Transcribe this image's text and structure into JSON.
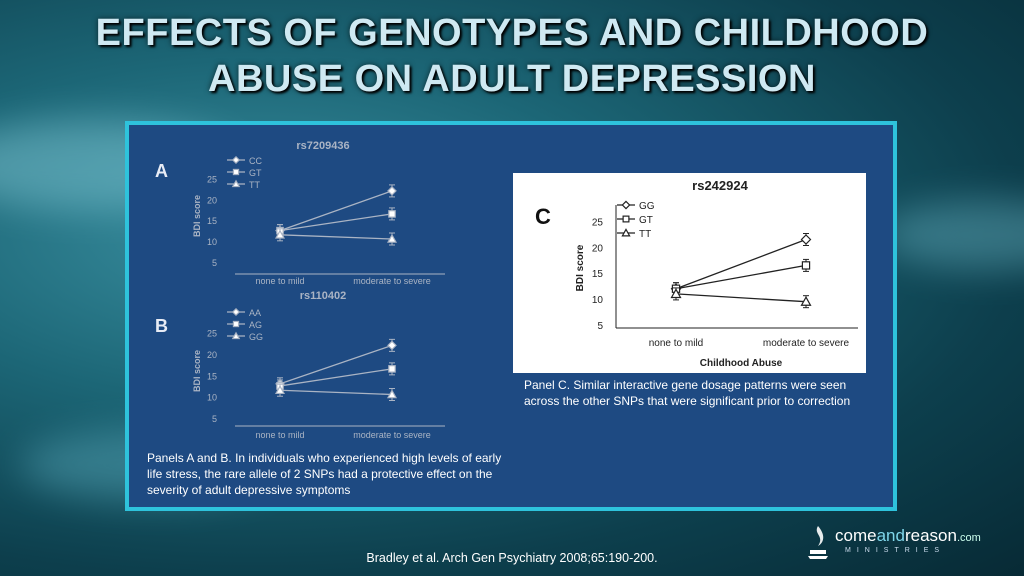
{
  "slide": {
    "title_line1": "EFFECTS OF GENOTYPES AND CHILDHOOD",
    "title_line2": "ABUSE ON ADULT DEPRESSION",
    "caption_ab": "Panels A and B. In individuals who experienced high levels of early life stress, the rare allele of 2 SNPs had a protective effect on the severity of adult depressive symptoms",
    "caption_c": "Panel C. Similar interactive gene dosage patterns were seen across the other SNPs that were significant prior to correction",
    "citation": "Bradley et al. Arch Gen Psychiatry 2008;65:190-200.",
    "logo": {
      "come": "come",
      "and": "and",
      "reason": "reason",
      "dotcom": ".com",
      "sub": "MINISTRIES"
    }
  },
  "colors": {
    "background": "#0d3f4d",
    "frame": "#2ec3dc",
    "panel": "#1e4a82"
  },
  "chart_data": [
    {
      "type": "line",
      "panel_label": "A",
      "title": "rs7209436",
      "ylabel": "BDI score",
      "categories": [
        "none to mild",
        "moderate to severe"
      ],
      "yticks": [
        5,
        10,
        15,
        20,
        25
      ],
      "ylim": [
        5,
        27
      ],
      "series": [
        {
          "name": "CC",
          "marker": "diamond",
          "values": [
            12.5,
            22
          ]
        },
        {
          "name": "GT",
          "marker": "square",
          "values": [
            12.5,
            16.5
          ]
        },
        {
          "name": "TT",
          "marker": "triangle",
          "values": [
            11.5,
            10.5
          ]
        }
      ]
    },
    {
      "type": "line",
      "panel_label": "B",
      "title": "rs110402",
      "ylabel": "BDI score",
      "categories": [
        "none to mild",
        "moderate to severe"
      ],
      "yticks": [
        5,
        10,
        15,
        20,
        25
      ],
      "ylim": [
        5,
        27
      ],
      "series": [
        {
          "name": "AA",
          "marker": "diamond",
          "values": [
            13,
            22
          ]
        },
        {
          "name": "AG",
          "marker": "square",
          "values": [
            12.5,
            16.5
          ]
        },
        {
          "name": "GG",
          "marker": "triangle",
          "values": [
            11.5,
            10.5
          ]
        }
      ]
    },
    {
      "type": "line",
      "panel_label": "C",
      "title": "rs242924",
      "ylabel": "BDI score",
      "xlabel": "Childhood Abuse",
      "categories": [
        "none to mild",
        "moderate to severe"
      ],
      "yticks": [
        5,
        10,
        15,
        20,
        25
      ],
      "ylim": [
        5,
        27
      ],
      "series": [
        {
          "name": "GG",
          "marker": "diamond",
          "values": [
            12,
            21.5
          ]
        },
        {
          "name": "GT",
          "marker": "square",
          "values": [
            12,
            16.5
          ]
        },
        {
          "name": "TT",
          "marker": "triangle",
          "values": [
            11,
            9.5
          ]
        }
      ]
    }
  ]
}
